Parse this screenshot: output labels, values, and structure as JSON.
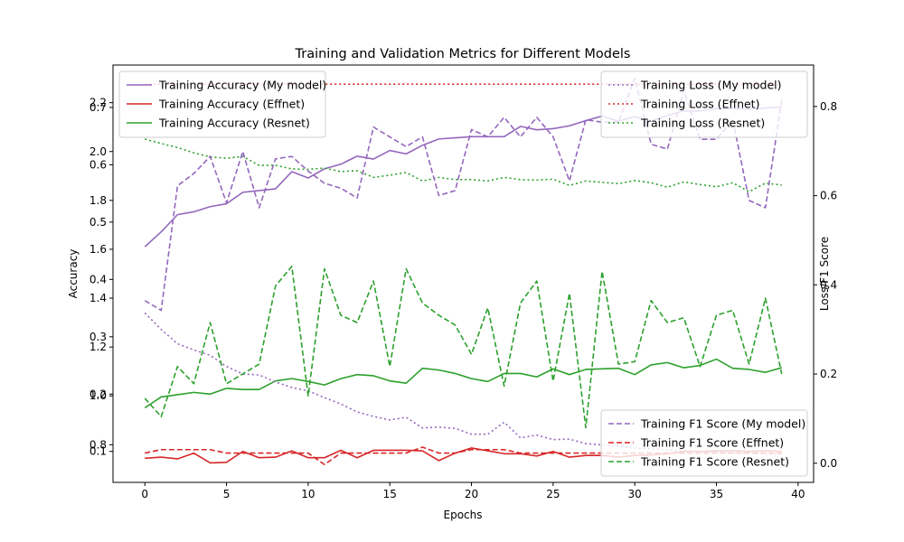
{
  "chart_data": {
    "type": "line",
    "title": "Training and Validation Metrics for Different Models",
    "xlabel": "Epochs",
    "ylabel_left": "Accuracy",
    "ylabel_right": "Loss/F1 Score",
    "xlim": [
      -1.95,
      40.95
    ],
    "xticks": [
      0,
      5,
      10,
      15,
      20,
      25,
      30,
      35,
      40
    ],
    "ylim_left": [
      0.046,
      0.774
    ],
    "yticks_left": [
      0.1,
      0.2,
      0.3,
      0.4,
      0.5,
      0.6,
      0.7
    ],
    "ylim_left_twin": [
      0.646,
      2.354
    ],
    "yticks_left_twin": [
      0.8,
      1.0,
      1.2,
      1.4,
      1.6,
      1.8,
      2.0,
      2.2
    ],
    "yticks_left_twin_labels": [
      "0.8",
      "1.0",
      "1.2",
      "1.4",
      "1.6",
      "1.8",
      "2.0",
      "2.2"
    ],
    "ylim_right": [
      -0.043,
      0.893
    ],
    "yticks_right": [
      0.0,
      0.2,
      0.4,
      0.6,
      0.8
    ],
    "yticks_right_labels": [
      "0.0",
      "0.2",
      "0.4",
      "0.6",
      "0.8"
    ],
    "grid": false,
    "x": [
      0,
      1,
      2,
      3,
      4,
      5,
      6,
      7,
      8,
      9,
      10,
      11,
      12,
      13,
      14,
      15,
      16,
      17,
      18,
      19,
      20,
      21,
      22,
      23,
      24,
      25,
      26,
      27,
      28,
      29,
      30,
      31,
      32,
      33,
      34,
      35,
      36,
      37,
      38,
      39
    ],
    "legends": [
      {
        "placement": "upper-left",
        "entries": [
          "Training Accuracy (My model)",
          "Training Accuracy (Effnet)",
          "Training Accuracy (Resnet)"
        ]
      },
      {
        "placement": "upper-right",
        "entries": [
          "Training Loss (My model)",
          "Training Loss (Effnet)",
          "Training Loss (Resnet)"
        ]
      },
      {
        "placement": "lower-right",
        "entries": [
          "Training F1 Score (My model)",
          "Training F1 Score (Effnet)",
          "Training F1 Score (Resnet)"
        ]
      }
    ],
    "series": [
      {
        "name": "Training Accuracy (My model)",
        "axis": "left",
        "color": "#9467bd",
        "style": "solid",
        "values": [
          0.457,
          0.483,
          0.513,
          0.518,
          0.527,
          0.532,
          0.552,
          0.555,
          0.558,
          0.588,
          0.577,
          0.593,
          0.601,
          0.615,
          0.61,
          0.625,
          0.619,
          0.634,
          0.645,
          0.647,
          0.649,
          0.649,
          0.649,
          0.667,
          0.661,
          0.663,
          0.668,
          0.677,
          0.685,
          0.676,
          0.684,
          0.676,
          0.686,
          0.694,
          0.694,
          0.698,
          0.698,
          0.697,
          0.699,
          0.701
        ]
      },
      {
        "name": "Training Accuracy (Effnet)",
        "axis": "left",
        "color": "#d62728",
        "style": "solid",
        "values": [
          0.088,
          0.09,
          0.087,
          0.097,
          0.08,
          0.081,
          0.1,
          0.089,
          0.09,
          0.101,
          0.089,
          0.089,
          0.102,
          0.089,
          0.102,
          0.102,
          0.102,
          0.101,
          0.084,
          0.097,
          0.106,
          0.101,
          0.096,
          0.096,
          0.092,
          0.1,
          0.09,
          0.093,
          0.093,
          0.09,
          0.093,
          0.094,
          0.096,
          0.1,
          0.1,
          0.101,
          0.101,
          0.1,
          0.101,
          0.1
        ]
      },
      {
        "name": "Training Accuracy (Resnet)",
        "axis": "left",
        "color": "#2ca02c",
        "style": "solid",
        "values": [
          0.176,
          0.195,
          0.199,
          0.203,
          0.2,
          0.21,
          0.208,
          0.208,
          0.223,
          0.227,
          0.222,
          0.216,
          0.227,
          0.234,
          0.232,
          0.223,
          0.219,
          0.245,
          0.242,
          0.236,
          0.227,
          0.222,
          0.236,
          0.236,
          0.23,
          0.244,
          0.234,
          0.243,
          0.244,
          0.245,
          0.234,
          0.251,
          0.255,
          0.246,
          0.25,
          0.261,
          0.245,
          0.243,
          0.238,
          0.246
        ]
      },
      {
        "name": "Training Loss (My model)",
        "axis": "right",
        "color": "#9467bd",
        "style": "dotted",
        "values": [
          0.337,
          0.3,
          0.268,
          0.254,
          0.242,
          0.217,
          0.2,
          0.198,
          0.182,
          0.17,
          0.162,
          0.147,
          0.133,
          0.115,
          0.105,
          0.097,
          0.103,
          0.079,
          0.081,
          0.078,
          0.065,
          0.065,
          0.092,
          0.057,
          0.063,
          0.053,
          0.054,
          0.044,
          0.041,
          0.038,
          0.034,
          0.032,
          0.03,
          0.028,
          0.026,
          0.025,
          0.023,
          0.022,
          0.021,
          0.02
        ]
      },
      {
        "name": "Training Loss (Effnet)",
        "axis": "right",
        "color": "#d62728",
        "style": "dotted",
        "values": [
          0.85,
          0.85,
          0.85,
          0.85,
          0.85,
          0.85,
          0.85,
          0.85,
          0.85,
          0.85,
          0.85,
          0.85,
          0.85,
          0.85,
          0.85,
          0.85,
          0.85,
          0.85,
          0.85,
          0.85,
          0.85,
          0.85,
          0.85,
          0.85,
          0.85,
          0.85,
          0.85,
          0.85,
          0.85,
          0.85,
          0.85,
          0.85,
          0.85,
          0.85,
          0.85,
          0.85,
          0.85,
          0.85,
          0.85,
          0.85
        ]
      },
      {
        "name": "Training Loss (Resnet)",
        "axis": "right",
        "color": "#2ca02c",
        "style": "dotted",
        "values": [
          0.727,
          0.717,
          0.708,
          0.696,
          0.687,
          0.684,
          0.688,
          0.668,
          0.668,
          0.66,
          0.659,
          0.662,
          0.654,
          0.656,
          0.641,
          0.646,
          0.652,
          0.633,
          0.641,
          0.636,
          0.636,
          0.633,
          0.641,
          0.636,
          0.635,
          0.637,
          0.623,
          0.633,
          0.63,
          0.627,
          0.634,
          0.629,
          0.619,
          0.631,
          0.625,
          0.62,
          0.629,
          0.609,
          0.628,
          0.624
        ]
      },
      {
        "name": "Training F1 Score (My model)",
        "axis": "left_twin",
        "color": "#9467bd",
        "style": "dashed",
        "values": [
          1.39,
          1.35,
          1.86,
          1.91,
          1.98,
          1.79,
          2.0,
          1.77,
          1.97,
          1.98,
          1.92,
          1.87,
          1.85,
          1.81,
          2.1,
          2.06,
          2.02,
          2.06,
          1.82,
          1.84,
          2.09,
          2.06,
          2.14,
          2.06,
          2.14,
          2.06,
          1.88,
          2.13,
          2.12,
          2.12,
          2.3,
          2.03,
          2.01,
          2.25,
          2.05,
          2.05,
          2.13,
          1.8,
          1.77,
          2.21
        ]
      },
      {
        "name": "Training F1 Score (Effnet)",
        "axis": "left_twin",
        "color": "#d62728",
        "style": "dashed",
        "values": [
          0.766,
          0.78,
          0.78,
          0.78,
          0.78,
          0.766,
          0.766,
          0.766,
          0.766,
          0.766,
          0.766,
          0.719,
          0.766,
          0.766,
          0.766,
          0.766,
          0.766,
          0.79,
          0.766,
          0.766,
          0.78,
          0.78,
          0.78,
          0.766,
          0.766,
          0.766,
          0.766,
          0.766,
          0.766,
          0.766,
          0.766,
          0.766,
          0.766,
          0.766,
          0.766,
          0.766,
          0.766,
          0.766,
          0.766,
          0.766
        ]
      },
      {
        "name": "Training F1 Score (Resnet)",
        "axis": "left_twin",
        "color": "#2ca02c",
        "style": "dashed",
        "values": [
          0.99,
          0.915,
          1.12,
          1.05,
          1.3,
          1.05,
          1.09,
          1.13,
          1.45,
          1.53,
          1.0,
          1.52,
          1.33,
          1.3,
          1.47,
          1.12,
          1.52,
          1.38,
          1.33,
          1.29,
          1.17,
          1.36,
          1.04,
          1.38,
          1.47,
          1.06,
          1.42,
          0.87,
          1.51,
          1.13,
          1.14,
          1.39,
          1.3,
          1.32,
          1.12,
          1.33,
          1.35,
          1.13,
          1.4,
          1.09
        ]
      }
    ]
  }
}
